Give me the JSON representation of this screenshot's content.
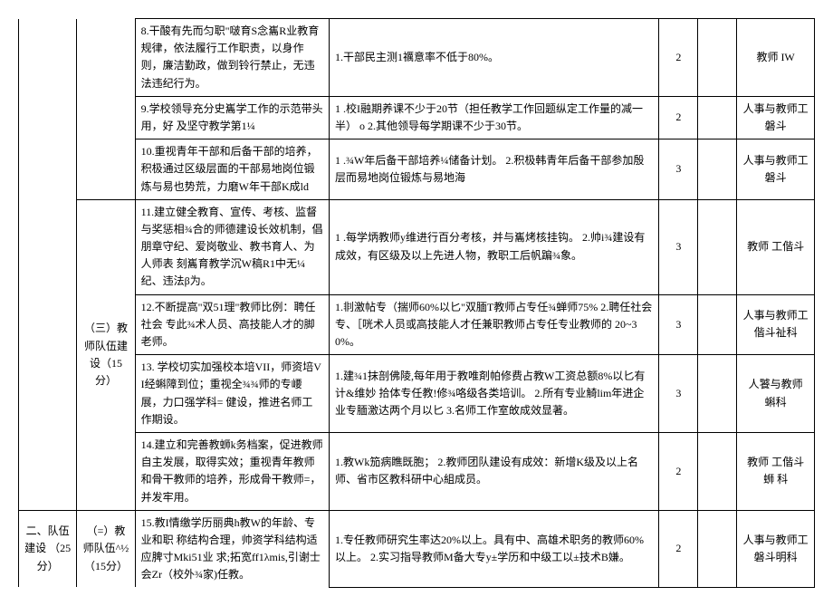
{
  "rows": [
    {
      "c3": "8.干酸有先而匀职\"啵育S念巂R业教育规律，依法履行工作职责，以身作则，廉洁勤政，做到铃行禁止，无违法违纪行为。",
      "c4": "1.干部民主测1禲意率不低于80%。",
      "c5": "2",
      "c7": "教师\nIW"
    },
    {
      "c3": "9.学校领导充分史巂学工作的示范带头用，好\n及坚守教学第1¼",
      "c4": "1\t.校I融期养课不少于20节（担任教学工作回题纵定工作量的减一半）\no\n2.其他领导每学期课不少于30节。",
      "c5": "2",
      "c7": "人事与教师工\n磐斗"
    },
    {
      "c3": "10.重视青年干部和后备干部的培养，积极通过区级层面的干部易地岗位锻炼与易也势荒，力磨W年干部K成ld",
      "c4": "1\t.¾W年后备干部培养¼储备计划。\n2.积极韩青年后备干部参加殷层而易地岗位锻炼与易地海",
      "c5": "3",
      "c7": "人事与教师工\n磐斗"
    },
    {
      "c2": "（三）教\n师队伍建\n设（15分）",
      "c3": "11.建立健全教育、宣传、考核、监督与奖惩相¾合的师德建设长效机制，倡朋章守纪、爱岗敬业、教书育人、为人师表 刻巂育教学沉W稿R1中无¼纪、违法β为。",
      "c4": "1\t.每学炳教师y维进行百分考核，并与巂烤核挂钩。\n2.帅i¾建设有成效，有区级及以上先进人物，教职工后帆蹁¾象。",
      "c5": "3",
      "c7": "教师\n工偕斗"
    },
    {
      "c3": "12.不断提高\"双51理\"教师比例：聘任社会\n专此¾术人员、高技能人才的脚老师。",
      "c4": "1.剕激帖专（揣师60%以匕\"双腼T教师占专任¾蝉师75%\n\n2.聘任社会专、［咣术人员或高技能人才任兼职教师占专任专业教师的\n20~30%。",
      "c5": "3",
      "c7": "人事与教师工\n偕斗祉科"
    },
    {
      "c3": "13. 学校切实加强校本培VII，师资培VI经蝌障到位；重视全¾¾师的专崾展，力口强学科=\n健设，推进名师工作期设。",
      "c4": "1.建¾1抹剖佛陵,每年用于教唯剤帕修费占教W工资总额8%以匕有计&维妙\n拾体专任教!修¾咯级各类培训。\n2.所有专业觭lim年进企业专腼激达两个月以匕\n3.名师工作室敀成效显著。",
      "c5": "3",
      "c7": "人饕与教师\n\n蝌科"
    },
    {
      "c3": "14.建立和完善教蛳k务档案，促进教师自主发展，取得实效；重视青年教师和骨干教师的培养，形成骨干教师=，并发牢用。",
      "c4": "1.教Wk笳病瞧既胞；\n2.教师团队建设有成效：新增K级及以上名师、省市区教科研中心組成员。",
      "c5": "2",
      "c7": "教师\n工偕斗蛳\n科"
    },
    {
      "c1": "二、队伍建设\n（25分）",
      "c2": "（=）教\n师队伍^½\n（15分）",
      "c3": "15.教I情缴学历丽典h教W的年龄、专业和职\n称结构合理，帅资学科结构适应脾寸Mki51业\n求;拓宽ff1λmis,引谢士会Zr（校外¾家)任教。",
      "c4": "1.专任教师研究生率达20%以上。具有中、高雄术职务的教师60%以上。\n2.实习指导教师M备大专y±学历和中级工以±技术B嫌。",
      "c5": "2",
      "c7": "人事与教师工\n磐斗明科"
    }
  ]
}
